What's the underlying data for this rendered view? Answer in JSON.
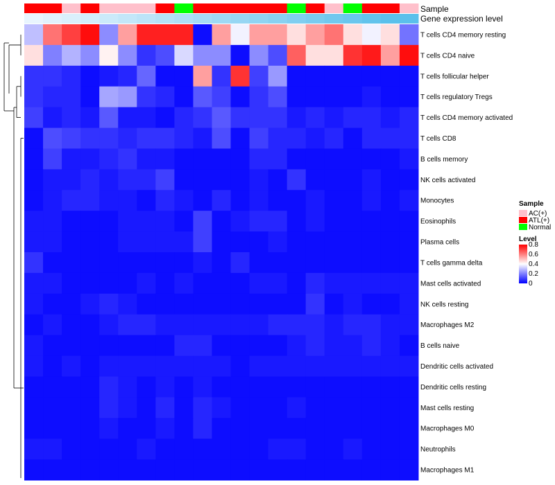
{
  "chart_data": {
    "type": "heatmap",
    "title": "",
    "rows": [
      "T cells CD4 memory resting",
      "T cells CD4 naive",
      "T cells follicular helper",
      "T cells regulatory  Tregs",
      "T cells CD4 memory activated",
      "T cells CD8",
      "B cells memory",
      "NK cells activated",
      "Monocytes",
      "Eosinophils",
      "Plasma cells",
      "T cells gamma delta",
      "Mast cells activated",
      "NK cells resting",
      "Macrophages M2",
      "B cells naive",
      "Dendritic cells activated",
      "Dendritic cells resting",
      "Mast cells resting",
      "Macrophages M0",
      "Neutrophils",
      "Macrophages M1"
    ],
    "values": [
      [
        0.3,
        0.62,
        0.7,
        0.78,
        0.22,
        0.55,
        0.75,
        0.75,
        0.75,
        0.02,
        0.55,
        0.38,
        0.55,
        0.55,
        0.45,
        0.55,
        0.62,
        0.45,
        0.38,
        0.45,
        0.18
      ],
      [
        0.45,
        0.2,
        0.28,
        0.22,
        0.42,
        0.22,
        0.08,
        0.12,
        0.34,
        0.22,
        0.22,
        0.02,
        0.22,
        0.12,
        0.65,
        0.45,
        0.45,
        0.72,
        0.76,
        0.55,
        0.78
      ],
      [
        0.08,
        0.08,
        0.06,
        0.02,
        0.04,
        0.06,
        0.16,
        0.02,
        0.02,
        0.55,
        0.08,
        0.72,
        0.1,
        0.24,
        0.02,
        0.02,
        0.02,
        0.02,
        0.02,
        0.02,
        0.02
      ],
      [
        0.08,
        0.06,
        0.06,
        0.02,
        0.26,
        0.24,
        0.08,
        0.06,
        0.02,
        0.14,
        0.1,
        0.02,
        0.08,
        0.12,
        0.02,
        0.02,
        0.02,
        0.02,
        0.04,
        0.02,
        0.02
      ],
      [
        0.1,
        0.04,
        0.06,
        0.04,
        0.14,
        0.04,
        0.04,
        0.02,
        0.06,
        0.08,
        0.14,
        0.08,
        0.08,
        0.08,
        0.04,
        0.06,
        0.04,
        0.06,
        0.06,
        0.04,
        0.06
      ],
      [
        0.02,
        0.12,
        0.1,
        0.08,
        0.08,
        0.06,
        0.08,
        0.08,
        0.06,
        0.04,
        0.12,
        0.02,
        0.1,
        0.06,
        0.06,
        0.04,
        0.06,
        0.02,
        0.06,
        0.06,
        0.06
      ],
      [
        0.02,
        0.1,
        0.04,
        0.04,
        0.06,
        0.08,
        0.04,
        0.04,
        0.02,
        0.02,
        0.02,
        0.02,
        0.06,
        0.06,
        0.02,
        0.02,
        0.02,
        0.02,
        0.02,
        0.02,
        0.04
      ],
      [
        0.02,
        0.04,
        0.04,
        0.06,
        0.04,
        0.06,
        0.06,
        0.1,
        0.02,
        0.02,
        0.02,
        0.02,
        0.04,
        0.02,
        0.08,
        0.02,
        0.02,
        0.02,
        0.04,
        0.02,
        0.02
      ],
      [
        0.02,
        0.04,
        0.06,
        0.06,
        0.04,
        0.04,
        0.02,
        0.06,
        0.04,
        0.02,
        0.06,
        0.02,
        0.04,
        0.02,
        0.02,
        0.04,
        0.02,
        0.02,
        0.04,
        0.02,
        0.04
      ],
      [
        0.04,
        0.04,
        0.02,
        0.02,
        0.02,
        0.04,
        0.04,
        0.04,
        0.02,
        0.1,
        0.02,
        0.04,
        0.06,
        0.06,
        0.02,
        0.04,
        0.02,
        0.02,
        0.02,
        0.02,
        0.02
      ],
      [
        0.04,
        0.04,
        0.02,
        0.02,
        0.02,
        0.04,
        0.04,
        0.04,
        0.04,
        0.1,
        0.02,
        0.02,
        0.02,
        0.04,
        0.02,
        0.02,
        0.02,
        0.02,
        0.02,
        0.02,
        0.02
      ],
      [
        0.08,
        0.02,
        0.02,
        0.02,
        0.02,
        0.02,
        0.02,
        0.02,
        0.02,
        0.04,
        0.02,
        0.06,
        0.02,
        0.02,
        0.02,
        0.02,
        0.02,
        0.02,
        0.02,
        0.02,
        0.02
      ],
      [
        0.04,
        0.04,
        0.02,
        0.02,
        0.02,
        0.02,
        0.04,
        0.02,
        0.04,
        0.02,
        0.02,
        0.02,
        0.04,
        0.04,
        0.02,
        0.06,
        0.04,
        0.04,
        0.04,
        0.04,
        0.04
      ],
      [
        0.04,
        0.02,
        0.02,
        0.04,
        0.06,
        0.04,
        0.02,
        0.02,
        0.02,
        0.02,
        0.02,
        0.02,
        0.02,
        0.02,
        0.02,
        0.08,
        0.02,
        0.04,
        0.02,
        0.02,
        0.04
      ],
      [
        0.02,
        0.04,
        0.02,
        0.02,
        0.04,
        0.06,
        0.06,
        0.04,
        0.04,
        0.04,
        0.04,
        0.04,
        0.04,
        0.06,
        0.06,
        0.06,
        0.04,
        0.06,
        0.06,
        0.04,
        0.04
      ],
      [
        0.04,
        0.02,
        0.02,
        0.02,
        0.02,
        0.02,
        0.02,
        0.02,
        0.06,
        0.06,
        0.02,
        0.02,
        0.02,
        0.02,
        0.04,
        0.06,
        0.04,
        0.04,
        0.06,
        0.04,
        0.02
      ],
      [
        0.04,
        0.02,
        0.04,
        0.02,
        0.04,
        0.04,
        0.04,
        0.04,
        0.04,
        0.04,
        0.04,
        0.02,
        0.04,
        0.04,
        0.04,
        0.04,
        0.04,
        0.04,
        0.04,
        0.04,
        0.04
      ],
      [
        0.02,
        0.02,
        0.02,
        0.02,
        0.06,
        0.04,
        0.02,
        0.04,
        0.02,
        0.04,
        0.02,
        0.02,
        0.02,
        0.02,
        0.02,
        0.02,
        0.02,
        0.02,
        0.02,
        0.02,
        0.02
      ],
      [
        0.02,
        0.02,
        0.02,
        0.02,
        0.06,
        0.04,
        0.02,
        0.06,
        0.02,
        0.06,
        0.04,
        0.02,
        0.02,
        0.02,
        0.04,
        0.02,
        0.02,
        0.02,
        0.02,
        0.02,
        0.02
      ],
      [
        0.02,
        0.02,
        0.02,
        0.02,
        0.04,
        0.02,
        0.02,
        0.04,
        0.02,
        0.06,
        0.02,
        0.02,
        0.02,
        0.02,
        0.02,
        0.02,
        0.02,
        0.02,
        0.02,
        0.02,
        0.02
      ],
      [
        0.04,
        0.04,
        0.02,
        0.02,
        0.02,
        0.02,
        0.04,
        0.02,
        0.02,
        0.02,
        0.02,
        0.02,
        0.02,
        0.04,
        0.04,
        0.02,
        0.02,
        0.04,
        0.02,
        0.02,
        0.02
      ],
      [
        0.02,
        0.02,
        0.02,
        0.02,
        0.02,
        0.02,
        0.02,
        0.02,
        0.02,
        0.02,
        0.02,
        0.02,
        0.02,
        0.02,
        0.02,
        0.02,
        0.02,
        0.02,
        0.02,
        0.02,
        0.02
      ]
    ],
    "value_range": [
      0,
      0.8
    ],
    "color_scale": {
      "low": "#0000ff",
      "mid": "#ffffff",
      "high": "#ff0000"
    },
    "sample_annotation": {
      "label": "Sample",
      "values": [
        "ATL(+)",
        "ATL(+)",
        "AC(+)",
        "ATL(+)",
        "AC(+)",
        "AC(+)",
        "AC(+)",
        "ATL(+)",
        "Normal",
        "ATL(+)",
        "ATL(+)",
        "ATL(+)",
        "ATL(+)",
        "ATL(+)",
        "Normal",
        "ATL(+)",
        "AC(+)",
        "Normal",
        "ATL(+)",
        "ATL(+)",
        "AC(+)"
      ]
    },
    "gene_annotation": {
      "label": "Gene expression level",
      "values": [
        0.05,
        0.1,
        0.15,
        0.2,
        0.25,
        0.3,
        0.35,
        0.4,
        0.45,
        0.5,
        0.55,
        0.6,
        0.65,
        0.7,
        0.75,
        0.8,
        0.85,
        0.9,
        0.95,
        1.0,
        1.0
      ],
      "color_low": "#f0f8ff",
      "color_high": "#5bc0eb"
    },
    "legend": {
      "placement": "right",
      "sample_title": "Sample",
      "sample_items": [
        {
          "label": "AC(+)",
          "color": "#ffc0cb"
        },
        {
          "label": "ATL(+)",
          "color": "#ff0000"
        },
        {
          "label": "Normal",
          "color": "#00ff00"
        }
      ],
      "level_title": "Level",
      "level_ticks": [
        "0.8",
        "0.6",
        "0.4",
        "0.2",
        "0"
      ],
      "level_tick_values": [
        0.8,
        0.6,
        0.4,
        0.2,
        0
      ]
    },
    "dendrogram": "rows"
  }
}
